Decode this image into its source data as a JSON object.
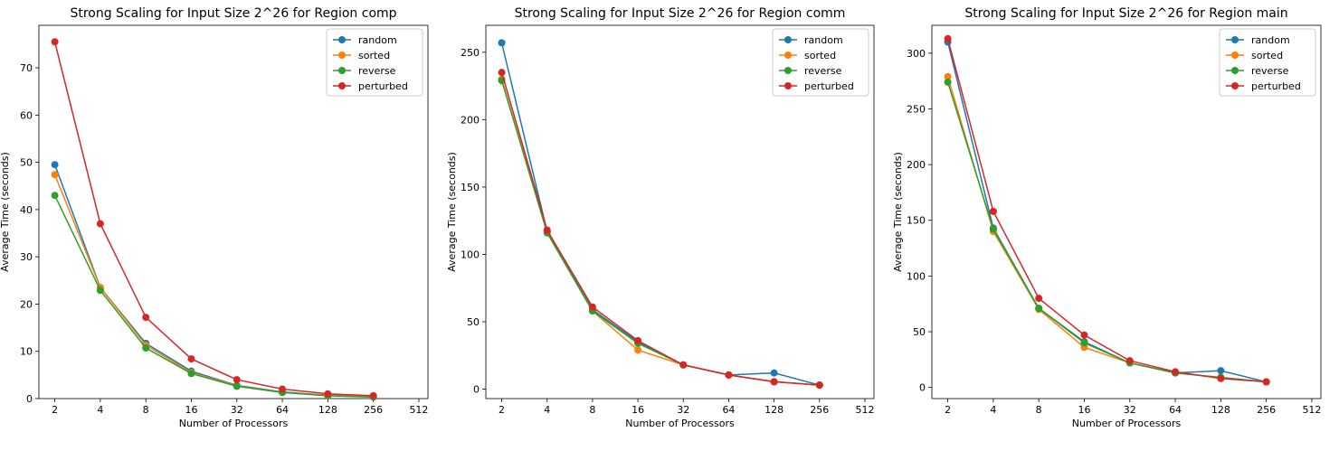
{
  "colors": {
    "random": "#1f77b4",
    "sorted": "#ff7f0e",
    "reverse": "#2ca02c",
    "perturbed": "#d62728"
  },
  "chart_data": [
    {
      "type": "line",
      "title": "Strong Scaling for Input Size 2^26 for Region comp",
      "xlabel": "Number of Processors",
      "ylabel": "Average Time (seconds)",
      "x_scale": "log2",
      "x_ticks": [
        2,
        4,
        8,
        16,
        32,
        64,
        128,
        256,
        512
      ],
      "y_ticks": [
        0,
        10,
        20,
        30,
        40,
        50,
        60,
        70
      ],
      "xlim": [
        2,
        512
      ],
      "ylim": [
        0,
        79
      ],
      "legend_position": "top-right",
      "x": [
        2,
        4,
        8,
        16,
        32,
        64,
        128,
        256
      ],
      "series": [
        {
          "name": "random",
          "values": [
            49.5,
            23.5,
            11.7,
            5.8,
            2.8,
            1.4,
            0.7,
            0.4
          ]
        },
        {
          "name": "sorted",
          "values": [
            47.4,
            23.5,
            11.3,
            5.5,
            2.7,
            1.3,
            0.7,
            0.4
          ]
        },
        {
          "name": "reverse",
          "values": [
            43.0,
            22.9,
            10.7,
            5.3,
            2.6,
            1.3,
            0.6,
            0.3
          ]
        },
        {
          "name": "perturbed",
          "values": [
            75.5,
            37.0,
            17.2,
            8.4,
            4.0,
            2.0,
            1.0,
            0.6
          ]
        }
      ]
    },
    {
      "type": "line",
      "title": "Strong Scaling for Input Size 2^26 for Region comm",
      "xlabel": "Number of Processors",
      "ylabel": "Average Time (seconds)",
      "x_scale": "log2",
      "x_ticks": [
        2,
        4,
        8,
        16,
        32,
        64,
        128,
        256,
        512
      ],
      "y_ticks": [
        0,
        50,
        100,
        150,
        200,
        250
      ],
      "xlim": [
        2,
        512
      ],
      "ylim": [
        -7,
        270
      ],
      "legend_position": "top-right",
      "x": [
        2,
        4,
        8,
        16,
        32,
        64,
        128,
        256
      ],
      "series": [
        {
          "name": "random",
          "values": [
            257,
            117,
            59,
            35,
            18,
            10.5,
            12,
            3
          ]
        },
        {
          "name": "sorted",
          "values": [
            230,
            116,
            58,
            29,
            18,
            10.5,
            5.5,
            3
          ]
        },
        {
          "name": "reverse",
          "values": [
            229,
            116,
            58,
            34,
            18,
            10.5,
            5.5,
            3
          ]
        },
        {
          "name": "perturbed",
          "values": [
            235,
            118,
            61,
            36,
            18,
            10.5,
            5.5,
            3
          ]
        }
      ]
    },
    {
      "type": "line",
      "title": "Strong Scaling for Input Size 2^26 for Region main",
      "xlabel": "Number of Processors",
      "ylabel": "Average Time (seconds)",
      "x_scale": "log2",
      "x_ticks": [
        2,
        4,
        8,
        16,
        32,
        64,
        128,
        256,
        512
      ],
      "y_ticks": [
        0,
        50,
        100,
        150,
        200,
        250,
        300
      ],
      "xlim": [
        2,
        512
      ],
      "ylim": [
        -10,
        325
      ],
      "legend_position": "top-right",
      "x": [
        2,
        4,
        8,
        16,
        32,
        64,
        128,
        256
      ],
      "series": [
        {
          "name": "random",
          "values": [
            310,
            143,
            71,
            41,
            22,
            13,
            15,
            5
          ]
        },
        {
          "name": "sorted",
          "values": [
            279,
            140,
            70,
            36,
            22,
            13,
            9,
            5
          ]
        },
        {
          "name": "reverse",
          "values": [
            274,
            142,
            71,
            40,
            22,
            13,
            9,
            5
          ]
        },
        {
          "name": "perturbed",
          "values": [
            313,
            158,
            80,
            47,
            24,
            14,
            8,
            5
          ]
        }
      ]
    }
  ]
}
